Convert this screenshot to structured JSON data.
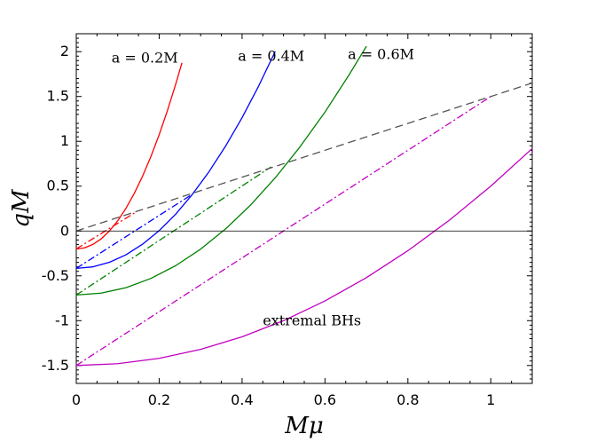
{
  "chart_data": {
    "type": "line",
    "title": "",
    "xlabel": "Mμ",
    "ylabel": "qM",
    "xlim": [
      0,
      1.1
    ],
    "ylim": [
      -1.7,
      2.2
    ],
    "grid": false,
    "x_ticks": [
      {
        "value": 0,
        "label": "0"
      },
      {
        "value": 0.2,
        "label": "0.2"
      },
      {
        "value": 0.4,
        "label": "0.4"
      },
      {
        "value": 0.6,
        "label": "0.6"
      },
      {
        "value": 0.8,
        "label": "0.8"
      },
      {
        "value": 1.0,
        "label": "1"
      }
    ],
    "y_ticks": [
      {
        "value": -1.5,
        "label": "-1.5"
      },
      {
        "value": -1,
        "label": "-1"
      },
      {
        "value": -0.5,
        "label": "-0.5"
      },
      {
        "value": 0,
        "label": "0"
      },
      {
        "value": 0.5,
        "label": "0.5"
      },
      {
        "value": 1,
        "label": "1"
      },
      {
        "value": 1.5,
        "label": "1.5"
      },
      {
        "value": 2,
        "label": "2"
      }
    ],
    "series": [
      {
        "name": "a = 0.2M solid",
        "color": "#ff0000",
        "style": "solid",
        "x": [
          0,
          0.02,
          0.04,
          0.06,
          0.08,
          0.1,
          0.12,
          0.14,
          0.16,
          0.18,
          0.2,
          0.22,
          0.24,
          0.255
        ],
        "y": [
          -0.2,
          -0.188,
          -0.15,
          -0.088,
          0.0,
          0.114,
          0.254,
          0.42,
          0.612,
          0.83,
          1.074,
          1.344,
          1.64,
          1.876
        ]
      },
      {
        "name": "a = 0.2M dash-dot",
        "color": "#ff0000",
        "style": "dashdot",
        "x": [
          0,
          0.14
        ],
        "y": [
          -0.2,
          0.2
        ]
      },
      {
        "name": "a = 0.4M solid",
        "color": "#0000ff",
        "style": "solid",
        "x": [
          0,
          0.04,
          0.08,
          0.12,
          0.16,
          0.2,
          0.24,
          0.28,
          0.32,
          0.36,
          0.4,
          0.44,
          0.48
        ],
        "y": [
          -0.417,
          -0.4,
          -0.349,
          -0.265,
          -0.147,
          0.004,
          0.189,
          0.408,
          0.66,
          0.945,
          1.264,
          1.617,
          2.003
        ]
      },
      {
        "name": "a = 0.4M dash-dot",
        "color": "#0000ff",
        "style": "dashdot",
        "x": [
          0,
          0.28
        ],
        "y": [
          -0.417,
          0.41
        ]
      },
      {
        "name": "a = 0.6M solid",
        "color": "#008000",
        "style": "solid",
        "x": [
          0,
          0.06,
          0.12,
          0.18,
          0.24,
          0.3,
          0.36,
          0.42,
          0.48,
          0.54,
          0.6,
          0.66,
          0.7
        ],
        "y": [
          -0.714,
          -0.693,
          -0.632,
          -0.529,
          -0.386,
          -0.202,
          0.022,
          0.287,
          0.593,
          0.94,
          1.326,
          1.755,
          2.06
        ]
      },
      {
        "name": "a = 0.6M dash-dot",
        "color": "#008000",
        "style": "dashdot",
        "x": [
          0,
          0.47
        ],
        "y": [
          -0.714,
          0.715
        ]
      },
      {
        "name": "extremal BHs solid",
        "color": "#c000c0",
        "style": "solid",
        "x": [
          0,
          0.1,
          0.2,
          0.3,
          0.4,
          0.5,
          0.6,
          0.7,
          0.8,
          0.9,
          1.0,
          1.1
        ],
        "y": [
          -1.5,
          -1.48,
          -1.42,
          -1.32,
          -1.18,
          -1.0,
          -0.78,
          -0.52,
          -0.22,
          0.12,
          0.5,
          0.92
        ]
      },
      {
        "name": "extremal BHs dash-dot",
        "color": "#c000c0",
        "style": "dashdot",
        "x": [
          0,
          1.0
        ],
        "y": [
          -1.5,
          1.5
        ]
      },
      {
        "name": "reference dashed",
        "color": "#555555",
        "style": "dashed",
        "x": [
          0,
          1.1
        ],
        "y": [
          0,
          1.65
        ]
      },
      {
        "name": "zero line",
        "color": "#000000",
        "style": "solid",
        "x": [
          0,
          1.1
        ],
        "y": [
          0,
          0
        ]
      }
    ],
    "annotations": [
      {
        "text": "a = 0.2M",
        "x": 0.085,
        "y": 1.88
      },
      {
        "text": "a = 0.4M",
        "x": 0.39,
        "y": 1.9
      },
      {
        "text": "a = 0.6M",
        "x": 0.655,
        "y": 1.92
      },
      {
        "text": "extremal BHs",
        "x": 0.45,
        "y": -1.05
      }
    ]
  }
}
